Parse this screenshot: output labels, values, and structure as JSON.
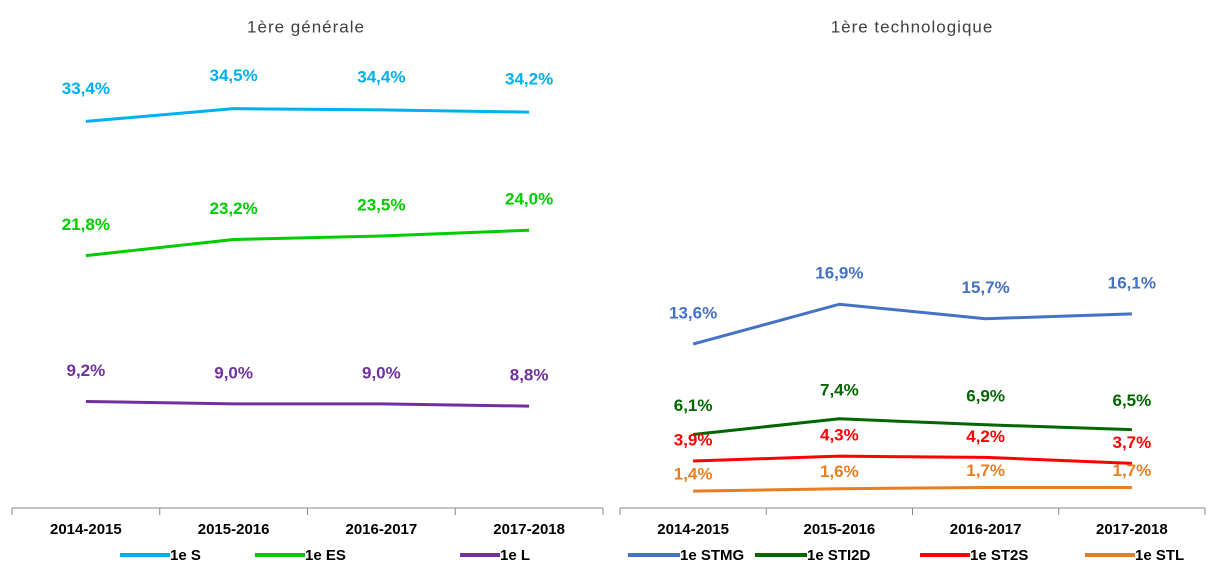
{
  "chart_data": [
    {
      "type": "line",
      "title": "1ère générale",
      "categories": [
        "2014-2015",
        "2015-2016",
        "2016-2017",
        "2017-2018"
      ],
      "ylim": [
        0,
        40
      ],
      "series": [
        {
          "name": "1e S",
          "color": "#00b0f0",
          "values": [
            33.4,
            34.5,
            34.4,
            34.2
          ],
          "value_labels": [
            "33,4%",
            "34,5%",
            "34,4%",
            "34,2%"
          ]
        },
        {
          "name": "1e ES",
          "color": "#00cc00",
          "values": [
            21.8,
            23.2,
            23.5,
            24.0
          ],
          "value_labels": [
            "21,8%",
            "23,2%",
            "23,5%",
            "24,0%"
          ]
        },
        {
          "name": "1e L",
          "color": "#7030a0",
          "values": [
            9.2,
            9.0,
            9.0,
            8.8
          ],
          "value_labels": [
            "9,2%",
            "9,0%",
            "9,0%",
            "8,8%"
          ]
        }
      ]
    },
    {
      "type": "line",
      "title": "1ère technologique",
      "categories": [
        "2014-2015",
        "2015-2016",
        "2016-2017",
        "2017-2018"
      ],
      "ylim": [
        0,
        38.4
      ],
      "series": [
        {
          "name": "1e STMG",
          "color": "#4472c4",
          "values": [
            13.6,
            16.9,
            15.7,
            16.1
          ],
          "value_labels": [
            "13,6%",
            "16,9%",
            "15,7%",
            "16,1%"
          ]
        },
        {
          "name": "1e STI2D",
          "color": "#006600",
          "values": [
            6.1,
            7.4,
            6.9,
            6.5
          ],
          "value_labels": [
            "6,1%",
            "7,4%",
            "6,9%",
            "6,5%"
          ]
        },
        {
          "name": "1e ST2S",
          "color": "#ff0000",
          "values": [
            3.9,
            4.3,
            4.2,
            3.7
          ],
          "value_labels": [
            "3,9%",
            "4,3%",
            "4,2%",
            "3,7%"
          ]
        },
        {
          "name": "1e STL",
          "color": "#e67e22",
          "values": [
            1.4,
            1.6,
            1.7,
            1.7
          ],
          "value_labels": [
            "1,4%",
            "1,6%",
            "1,7%",
            "1,7%"
          ]
        }
      ]
    }
  ]
}
